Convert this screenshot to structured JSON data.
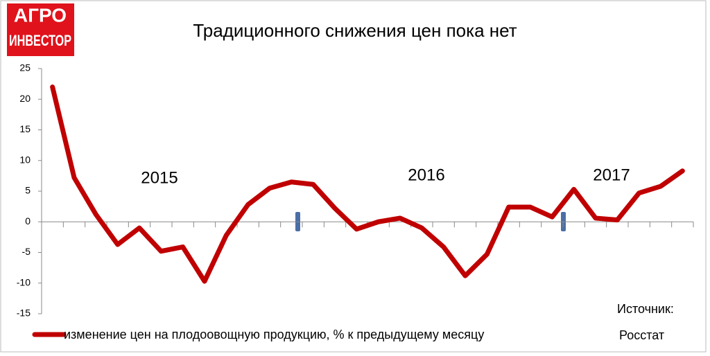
{
  "logo": [
    "АГРО",
    "ИНВЕСТОР"
  ],
  "chart_data": {
    "type": "line",
    "title": "Традиционного снижения цен пока нет",
    "categories": [
      null,
      null,
      null,
      null,
      null,
      null,
      null,
      null,
      null,
      null,
      null,
      null,
      null,
      null,
      null,
      null,
      null,
      null,
      null,
      null,
      null,
      null,
      null,
      null,
      null,
      null,
      null,
      null,
      null,
      null
    ],
    "series": [
      {
        "name": "изменение цен на плодоовощную продукцию, % к предыдущему месяцу",
        "color": "#c00000",
        "values": [
          22,
          7.2,
          1.2,
          -3.7,
          -1,
          -4.8,
          -4.1,
          -9.7,
          -2.2,
          2.8,
          5.5,
          6.5,
          6.1,
          2.2,
          -1.2,
          0,
          0.6,
          -1,
          -4.1,
          -8.8,
          -5.3,
          2.4,
          2.4,
          0.8,
          5.3,
          0.6,
          0.3,
          4.7,
          5.8,
          8.3
        ]
      }
    ],
    "ylim": [
      -15,
      25
    ],
    "yticks": [
      -15,
      -10,
      -5,
      0,
      5,
      10,
      15,
      20,
      25
    ],
    "annotations": [
      "2015",
      "2016",
      "2017"
    ],
    "source": [
      "Источник:",
      "Росстат"
    ]
  }
}
